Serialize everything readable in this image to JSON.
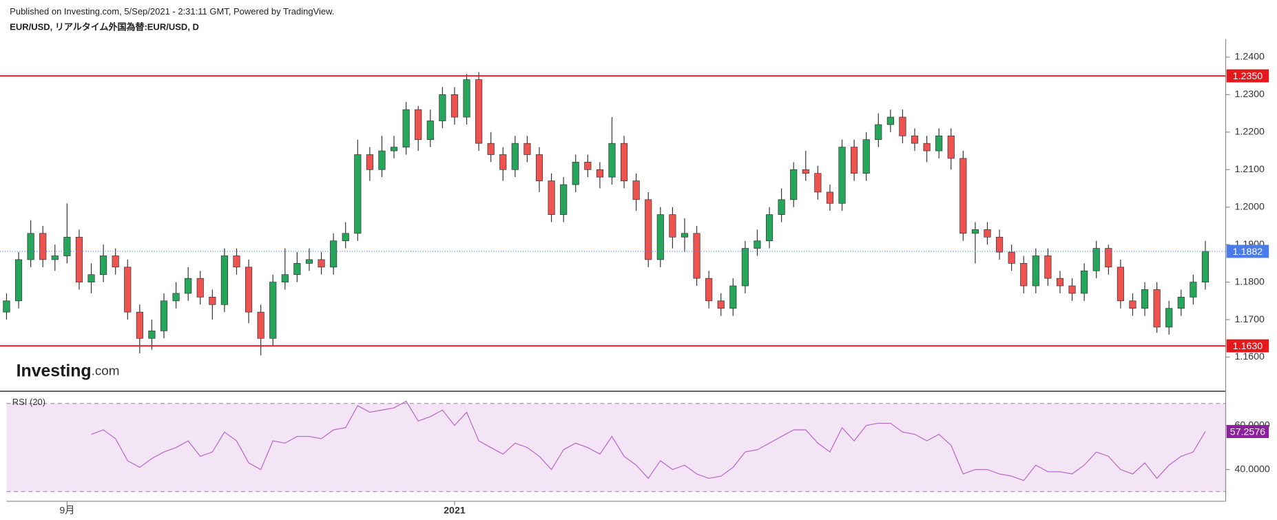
{
  "header": {
    "published": "Published on Investing.com, 5/Sep/2021 - 2:31:11 GMT, Powered by TradingView.",
    "symbol": "EUR/USD, リアルタイム外国為替:EUR/USD, D"
  },
  "logo": {
    "name": "Investing",
    "suffix": ".com"
  },
  "chart_data": [
    {
      "type": "candlestick",
      "up_color": "#26a65b",
      "down_color": "#ef5350",
      "outline_color": "#333333",
      "categories": [
        null,
        null,
        null,
        null,
        null,
        "9月",
        null,
        null,
        null,
        null,
        null,
        null,
        null,
        null,
        null,
        null,
        null,
        null,
        null,
        null,
        null,
        null,
        null,
        null,
        null,
        null,
        null,
        null,
        null,
        null,
        null,
        null,
        null,
        null,
        null,
        null,
        null,
        "2021",
        null,
        null,
        null,
        null,
        null,
        null,
        null,
        null,
        null,
        null,
        null,
        null,
        null,
        null,
        null,
        null,
        null,
        null,
        null,
        null,
        null,
        null,
        null,
        null,
        null,
        null,
        null,
        null,
        null,
        null,
        null,
        null,
        null,
        null,
        null,
        null,
        null,
        null,
        null,
        null,
        null,
        null,
        null,
        null,
        null,
        null,
        null,
        null,
        null,
        null,
        null,
        null,
        null,
        null,
        null,
        null,
        null,
        null,
        null,
        null,
        null,
        null
      ],
      "open": [
        1.172,
        1.175,
        1.186,
        1.193,
        1.186,
        1.187,
        1.192,
        1.18,
        1.182,
        1.187,
        1.184,
        1.172,
        1.165,
        1.167,
        1.175,
        1.177,
        1.181,
        1.176,
        1.174,
        1.187,
        1.184,
        1.172,
        1.165,
        1.18,
        1.182,
        1.185,
        1.186,
        1.184,
        1.191,
        1.193,
        1.214,
        1.21,
        1.215,
        1.216,
        1.226,
        1.218,
        1.223,
        1.23,
        1.224,
        1.234,
        1.217,
        1.214,
        1.21,
        1.217,
        1.214,
        1.207,
        1.198,
        1.206,
        1.212,
        1.21,
        1.208,
        1.217,
        1.207,
        1.202,
        1.186,
        1.198,
        1.192,
        1.193,
        1.181,
        1.175,
        1.173,
        1.179,
        1.189,
        1.191,
        1.198,
        1.202,
        1.21,
        1.209,
        1.204,
        1.201,
        1.216,
        1.209,
        1.218,
        1.222,
        1.224,
        1.219,
        1.217,
        1.215,
        1.219,
        1.213,
        1.193,
        1.194,
        1.192,
        1.188,
        1.185,
        1.179,
        1.187,
        1.181,
        1.179,
        1.177,
        1.183,
        1.189,
        1.184,
        1.175,
        1.173,
        1.178,
        1.168,
        1.173,
        1.176,
        1.18
      ],
      "high": [
        1.177,
        1.188,
        1.1965,
        1.195,
        1.19,
        1.201,
        1.194,
        1.185,
        1.19,
        1.189,
        1.186,
        1.174,
        1.17,
        1.177,
        1.18,
        1.184,
        1.183,
        1.178,
        1.189,
        1.189,
        1.186,
        1.174,
        1.182,
        1.189,
        1.188,
        1.189,
        1.188,
        1.193,
        1.196,
        1.218,
        1.216,
        1.219,
        1.219,
        1.228,
        1.227,
        1.226,
        1.232,
        1.232,
        1.2355,
        1.236,
        1.22,
        1.216,
        1.219,
        1.219,
        1.216,
        1.209,
        1.208,
        1.214,
        1.214,
        1.212,
        1.224,
        1.219,
        1.209,
        1.204,
        1.2,
        1.2,
        1.197,
        1.195,
        1.183,
        1.177,
        1.181,
        1.191,
        1.194,
        1.2,
        1.205,
        1.212,
        1.215,
        1.211,
        1.206,
        1.218,
        1.218,
        1.22,
        1.225,
        1.226,
        1.226,
        1.221,
        1.219,
        1.221,
        1.221,
        1.215,
        1.196,
        1.196,
        1.194,
        1.19,
        1.187,
        1.189,
        1.189,
        1.183,
        1.181,
        1.185,
        1.191,
        1.19,
        1.186,
        1.177,
        1.18,
        1.18,
        1.175,
        1.178,
        1.182,
        1.191
      ],
      "low": [
        1.17,
        1.173,
        1.184,
        1.184,
        1.183,
        1.185,
        1.178,
        1.177,
        1.18,
        1.182,
        1.17,
        1.161,
        1.162,
        1.165,
        1.173,
        1.175,
        1.174,
        1.17,
        1.172,
        1.182,
        1.169,
        1.1605,
        1.163,
        1.178,
        1.18,
        1.183,
        1.182,
        1.182,
        1.189,
        1.191,
        1.207,
        1.208,
        1.213,
        1.214,
        1.215,
        1.216,
        1.221,
        1.222,
        1.222,
        1.215,
        1.212,
        1.207,
        1.208,
        1.212,
        1.204,
        1.196,
        1.196,
        1.204,
        1.208,
        1.205,
        1.206,
        1.205,
        1.199,
        1.184,
        1.184,
        1.189,
        1.188,
        1.179,
        1.173,
        1.171,
        1.171,
        1.177,
        1.187,
        1.189,
        1.196,
        1.2,
        1.207,
        1.202,
        1.199,
        1.199,
        1.207,
        1.207,
        1.216,
        1.22,
        1.217,
        1.215,
        1.212,
        1.213,
        1.21,
        1.191,
        1.185,
        1.19,
        1.186,
        1.183,
        1.177,
        1.177,
        1.179,
        1.177,
        1.175,
        1.175,
        1.181,
        1.182,
        1.173,
        1.171,
        1.171,
        1.1665,
        1.166,
        1.171,
        1.174,
        1.178
      ],
      "close": [
        1.175,
        1.186,
        1.193,
        1.186,
        1.187,
        1.192,
        1.18,
        1.182,
        1.187,
        1.184,
        1.172,
        1.165,
        1.167,
        1.175,
        1.177,
        1.181,
        1.176,
        1.174,
        1.187,
        1.184,
        1.172,
        1.165,
        1.18,
        1.182,
        1.185,
        1.186,
        1.184,
        1.191,
        1.193,
        1.214,
        1.21,
        1.215,
        1.216,
        1.226,
        1.218,
        1.223,
        1.23,
        1.224,
        1.234,
        1.217,
        1.214,
        1.21,
        1.217,
        1.214,
        1.207,
        1.198,
        1.206,
        1.212,
        1.21,
        1.208,
        1.217,
        1.207,
        1.202,
        1.186,
        1.198,
        1.192,
        1.193,
        1.181,
        1.175,
        1.173,
        1.179,
        1.189,
        1.191,
        1.198,
        1.202,
        1.21,
        1.209,
        1.204,
        1.201,
        1.216,
        1.209,
        1.218,
        1.222,
        1.224,
        1.219,
        1.217,
        1.215,
        1.219,
        1.213,
        1.193,
        1.194,
        1.192,
        1.188,
        1.185,
        1.179,
        1.187,
        1.181,
        1.179,
        1.177,
        1.183,
        1.189,
        1.184,
        1.175,
        1.173,
        1.178,
        1.168,
        1.173,
        1.176,
        1.18,
        1.1882
      ],
      "ylim": [
        1.1509,
        1.2448
      ],
      "yticks": [
        {
          "value": 1.16,
          "label": "1.1600"
        },
        {
          "value": 1.17,
          "label": "1.1700"
        },
        {
          "value": 1.18,
          "label": "1.1800"
        },
        {
          "value": 1.19,
          "label": "1.1900"
        },
        {
          "value": 1.2,
          "label": "1.2000"
        },
        {
          "value": 1.21,
          "label": "1.2100"
        },
        {
          "value": 1.22,
          "label": "1.2200"
        },
        {
          "value": 1.23,
          "label": "1.2300"
        },
        {
          "value": 1.24,
          "label": "1.2400"
        }
      ],
      "hlines": [
        {
          "value": 1.235,
          "label": "1.2350",
          "color": "#e5191c"
        },
        {
          "value": 1.163,
          "label": "1.1630",
          "color": "#e5191c"
        }
      ],
      "last_price_color": "#4a7be8"
    },
    {
      "type": "line",
      "title": "RSI (20)",
      "color": "#b565c7",
      "band_color": "#f3e5f5",
      "bands": [
        30,
        70
      ],
      "values": [
        null,
        null,
        null,
        null,
        null,
        null,
        null,
        56,
        58,
        54,
        44,
        41,
        45,
        48,
        50,
        53,
        46,
        48,
        57,
        53,
        43,
        40,
        53,
        52,
        55,
        55,
        54,
        58,
        59,
        69,
        66,
        67,
        68,
        71,
        62,
        64,
        67,
        60,
        66,
        53,
        50,
        47,
        52,
        50,
        46,
        40,
        49,
        52,
        50,
        47,
        55,
        46,
        42,
        36,
        44,
        40,
        42,
        38,
        36,
        37,
        41,
        48,
        49,
        52,
        55,
        58,
        58,
        52,
        48,
        59,
        53,
        60,
        61,
        61,
        57,
        56,
        53,
        56,
        51,
        38,
        40,
        40,
        38,
        37,
        35,
        42,
        39,
        39,
        38,
        42,
        48,
        46,
        40,
        38,
        43,
        36,
        42,
        46,
        48,
        57.2576
      ],
      "ylim": [
        26.7,
        72.6
      ],
      "yticks": [
        {
          "value": 40,
          "label": "40.0000"
        },
        {
          "value": 60,
          "label": "60.0000"
        }
      ],
      "last_color": "#8e1f9e"
    }
  ]
}
